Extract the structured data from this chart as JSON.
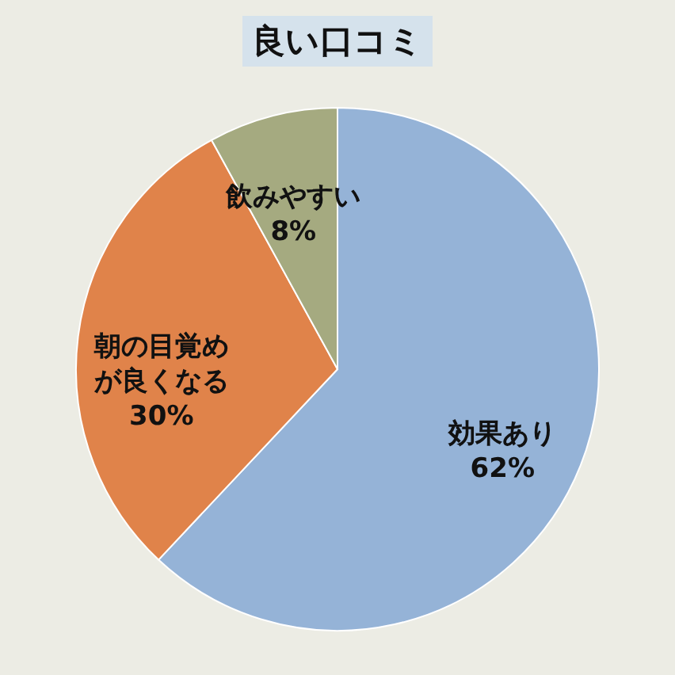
{
  "chart_data": {
    "type": "pie",
    "title": "良い口コミ",
    "categories": [
      "効果あり",
      "朝の目覚めが良くなる",
      "飲みやすい"
    ],
    "values": [
      62,
      30,
      8
    ],
    "colors": [
      "#95b3d7",
      "#e0834a",
      "#a5aa80"
    ],
    "value_labels": [
      "62%",
      "30%",
      "8%"
    ]
  }
}
